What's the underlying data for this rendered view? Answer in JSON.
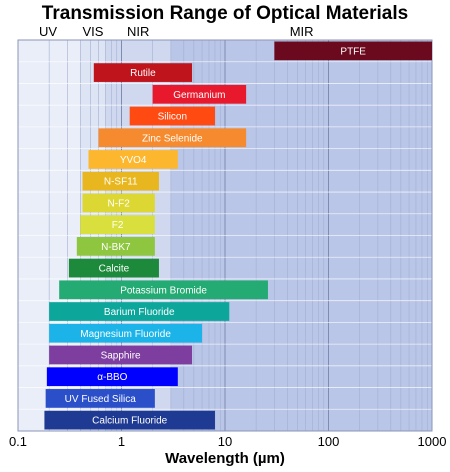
{
  "chart_data": {
    "type": "bar",
    "orientation": "horizontal-range",
    "title": "Transmission Range of Optical Materials",
    "xlabel": "Wavelength (µm)",
    "xscale": "log",
    "xlim": [
      0.1,
      1000
    ],
    "x_ticks": [
      "0.1",
      "1",
      "10",
      "100",
      "1000"
    ],
    "grid": true,
    "regions": [
      {
        "label": "UV",
        "range": [
          0.1,
          0.4
        ],
        "color": "#eaeef9"
      },
      {
        "label": "VIS",
        "range": [
          0.4,
          0.7
        ],
        "color": "#dde4f3"
      },
      {
        "label": "NIR",
        "range": [
          0.7,
          3
        ],
        "color": "#cfd8ee"
      },
      {
        "label": "MIR",
        "range": [
          3,
          1000
        ],
        "color": "#b9c6e7"
      }
    ],
    "materials": [
      {
        "name": "PTFE",
        "range": [
          30,
          1000
        ],
        "color": "#6b0a1e"
      },
      {
        "name": "Rutile",
        "range": [
          0.54,
          4.8
        ],
        "color": "#c0141d"
      },
      {
        "name": "Germanium",
        "range": [
          2.0,
          16.0
        ],
        "color": "#e8192c"
      },
      {
        "name": "Silicon",
        "range": [
          1.2,
          8.0
        ],
        "color": "#ff4a12"
      },
      {
        "name": "Zinc Selenide",
        "range": [
          0.6,
          16.0
        ],
        "color": "#f68a2e"
      },
      {
        "name": "YVO4",
        "range": [
          0.48,
          3.5
        ],
        "color": "#fcb72e"
      },
      {
        "name": "N-SF11",
        "range": [
          0.42,
          2.3
        ],
        "color": "#e8b71f"
      },
      {
        "name": "N-F2",
        "range": [
          0.42,
          2.1
        ],
        "color": "#ddd733"
      },
      {
        "name": "F2",
        "range": [
          0.4,
          2.1
        ],
        "color": "#d9e03e"
      },
      {
        "name": "N-BK7",
        "range": [
          0.37,
          2.1
        ],
        "color": "#8ec63f"
      },
      {
        "name": "Calcite",
        "range": [
          0.31,
          2.3
        ],
        "color": "#1c8a3a"
      },
      {
        "name": "Potassium Bromide",
        "range": [
          0.25,
          26.0
        ],
        "color": "#23ab73"
      },
      {
        "name": "Barium Fluoride",
        "range": [
          0.2,
          11.0
        ],
        "color": "#0da69b"
      },
      {
        "name": "Magnesium Fluoride",
        "range": [
          0.2,
          6.0
        ],
        "color": "#1cb4e8"
      },
      {
        "name": "Sapphire",
        "range": [
          0.2,
          4.8
        ],
        "color": "#7d3ea0"
      },
      {
        "name": "α-BBO",
        "range": [
          0.19,
          3.5
        ],
        "color": "#0000ff"
      },
      {
        "name": "UV Fused Silica",
        "range": [
          0.185,
          2.1
        ],
        "color": "#2a4fc9"
      },
      {
        "name": "Calcium Fluoride",
        "range": [
          0.18,
          8.0
        ],
        "color": "#1f3a93"
      }
    ]
  }
}
